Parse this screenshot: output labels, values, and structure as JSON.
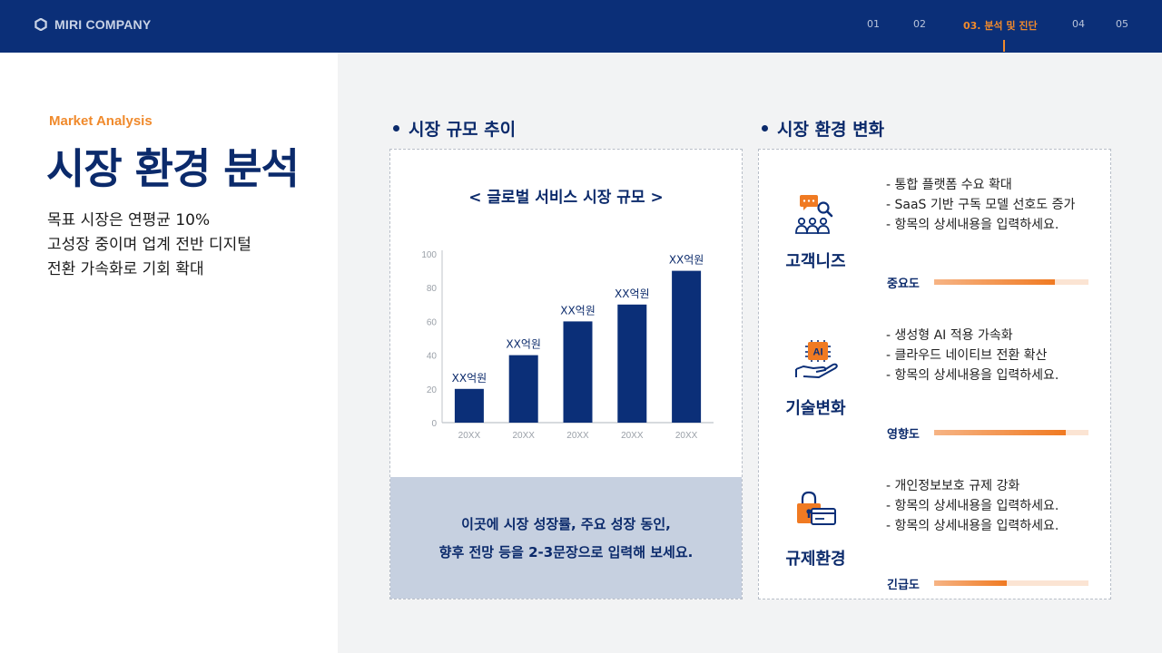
{
  "header": {
    "brand": "MIRI COMPANY",
    "nav": [
      {
        "label": "01",
        "active": false
      },
      {
        "label": "02",
        "active": false
      },
      {
        "label": "03. 분석 및 진단",
        "active": true
      },
      {
        "label": "04",
        "active": false
      },
      {
        "label": "05",
        "active": false
      }
    ]
  },
  "intro": {
    "eyebrow": "Market Analysis",
    "title": "시장 환경 분석",
    "summary": [
      "목표 시장은 연평균 10%",
      "고성장 중이며 업계 전반 디지털",
      "전환 가속화로 기회 확대"
    ]
  },
  "market": {
    "heading": "시장 규모 추이",
    "chart_title": "< 글로벌 서비스 시장 규모 >",
    "note": [
      "이곳에 시장 성장률, 주요 성장 동인,",
      "향후 전망 등을 2-3문장으로 입력해 보세요."
    ]
  },
  "chart_data": {
    "type": "bar",
    "categories": [
      "20XX",
      "20XX",
      "20XX",
      "20XX",
      "20XX"
    ],
    "values": [
      20,
      40,
      60,
      70,
      90
    ],
    "data_labels": [
      "XX억원",
      "XX억원",
      "XX억원",
      "XX억원",
      "XX억원"
    ],
    "yticks": [
      0,
      20,
      40,
      60,
      80,
      100
    ],
    "ylim": [
      0,
      100
    ],
    "title": "< 글로벌 서비스 시장 규모 >",
    "grid": false,
    "bar_color": "#0b2f78"
  },
  "environment": {
    "heading": "시장 환경 변화",
    "items": [
      {
        "icon": "customer-needs-icon",
        "label": "고객니즈",
        "bullets": [
          "- 통합 플랫폼 수요 확대",
          "- SaaS 기반 구독 모델 선호도 증가",
          "- 항목의 상세내용을 입력하세요."
        ],
        "meter_label": "중요도",
        "meter_value": 0.78
      },
      {
        "icon": "ai-technology-icon",
        "label": "기술변화",
        "bullets": [
          "- 생성형 AI 적용 가속화",
          "- 클라우드 네이티브 전환 확산",
          "- 항목의 상세내용을 입력하세요."
        ],
        "meter_label": "영향도",
        "meter_value": 0.85
      },
      {
        "icon": "regulation-lock-icon",
        "label": "규제환경",
        "bullets": [
          "- 개인정보보호 규제 강화",
          "- 항목의 상세내용을 입력하세요.",
          "- 항목의 상세내용을 입력하세요."
        ],
        "meter_label": "긴급도",
        "meter_value": 0.47
      }
    ]
  },
  "colors": {
    "navy": "#0b2f78",
    "accent": "#f08a2c",
    "note_bg": "#c6d0e0"
  }
}
